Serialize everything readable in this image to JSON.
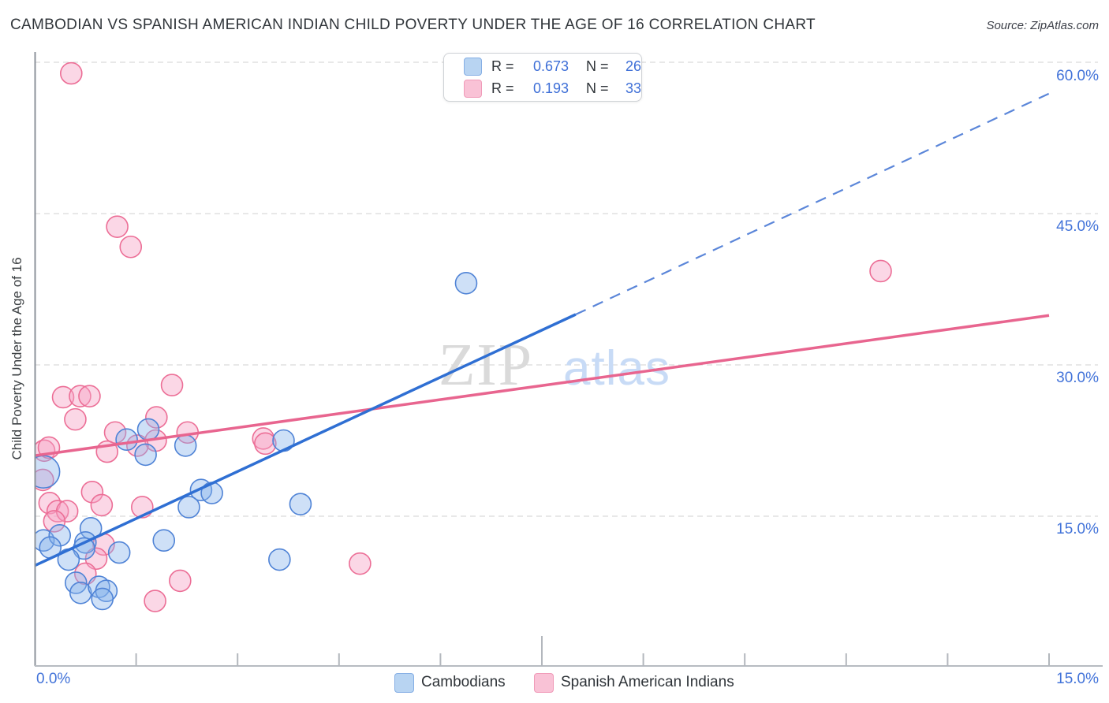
{
  "header": {
    "title": "CAMBODIAN VS SPANISH AMERICAN INDIAN CHILD POVERTY UNDER THE AGE OF 16 CORRELATION CHART",
    "source": "Source: ZipAtlas.com"
  },
  "watermark": {
    "part1": "ZIP",
    "part2": "atlas"
  },
  "legend_box": {
    "rows": [
      {
        "series": "Cambodians",
        "r_label": "R =",
        "r_value": "0.673",
        "n_label": "N =",
        "n_value": "26"
      },
      {
        "series": "Spanish American Indians",
        "r_label": "R =",
        "r_value": "0.193",
        "n_label": "N =",
        "n_value": "33"
      }
    ]
  },
  "bottom_legend": {
    "items": [
      {
        "label": "Cambodians"
      },
      {
        "label": "Spanish American Indians"
      }
    ]
  },
  "chart_data": {
    "type": "scatter",
    "title": "Cambodian vs Spanish American Indian Child Poverty Under the Age of 16",
    "xlabel": "",
    "ylabel": "Child Poverty Under the Age of 16",
    "xlim": [
      0,
      15
    ],
    "ylim": [
      0,
      62
    ],
    "grid": "horizontal-dashed",
    "legend_position": "top-center and bottom-center",
    "x_tick_labels": {
      "left": "0.0%",
      "right": "15.0%"
    },
    "y_ticks": [
      {
        "value": 60,
        "label": "60.0%"
      },
      {
        "value": 45,
        "label": "45.0%"
      },
      {
        "value": 30,
        "label": "30.0%"
      },
      {
        "value": 15,
        "label": "15.0%"
      }
    ],
    "series": [
      {
        "name": "Cambodians",
        "R": 0.673,
        "N": 26,
        "point_fill": "rgba(133,177,236,0.40)",
        "point_stroke": "#4f83d6",
        "trend_color": "#2f6fd3",
        "trend_dashed_color": "#5b86d9",
        "trend": {
          "solid": {
            "x1": 0,
            "y1": 10.1,
            "x2": 8.0,
            "y2": 35.0
          },
          "dashed": {
            "x1": 8.0,
            "y1": 35.0,
            "x2": 15.0,
            "y2": 56.9
          }
        },
        "points": [
          [
            0.13,
            19.4,
            20.5
          ],
          [
            1.36,
            22.6
          ],
          [
            1.68,
            23.6
          ],
          [
            2.23,
            22.0
          ],
          [
            1.64,
            21.1
          ],
          [
            2.46,
            17.6
          ],
          [
            2.62,
            17.3
          ],
          [
            2.28,
            15.9
          ],
          [
            0.83,
            13.8
          ],
          [
            0.13,
            12.6
          ],
          [
            0.37,
            13.1
          ],
          [
            0.23,
            11.9
          ],
          [
            0.75,
            12.4
          ],
          [
            0.73,
            11.8
          ],
          [
            1.25,
            11.4
          ],
          [
            0.5,
            10.7
          ],
          [
            0.61,
            8.4
          ],
          [
            0.68,
            7.4
          ],
          [
            0.95,
            8.0
          ],
          [
            1.06,
            7.6
          ],
          [
            1.0,
            6.8
          ],
          [
            1.91,
            12.6
          ],
          [
            3.62,
            10.7
          ],
          [
            3.68,
            22.5
          ],
          [
            3.93,
            16.2
          ],
          [
            6.38,
            38.1
          ]
        ]
      },
      {
        "name": "Spanish American Indians",
        "R": 0.193,
        "N": 33,
        "point_fill": "rgba(246,160,195,0.42)",
        "point_stroke": "#ec6e96",
        "trend_color": "#e8658f",
        "trend": {
          "solid": {
            "x1": 0,
            "y1": 21.0,
            "x2": 15.0,
            "y2": 34.9
          }
        },
        "points": [
          [
            0.54,
            58.9
          ],
          [
            1.22,
            43.7
          ],
          [
            1.42,
            41.7
          ],
          [
            12.51,
            39.3
          ],
          [
            0.42,
            26.8
          ],
          [
            0.67,
            26.9
          ],
          [
            0.81,
            26.9
          ],
          [
            0.6,
            24.6
          ],
          [
            2.03,
            28.0
          ],
          [
            1.19,
            23.3
          ],
          [
            1.8,
            24.8
          ],
          [
            2.26,
            23.3
          ],
          [
            1.79,
            22.5
          ],
          [
            1.07,
            21.4
          ],
          [
            1.52,
            22.0
          ],
          [
            0.14,
            21.5
          ],
          [
            0.21,
            21.8
          ],
          [
            0.12,
            18.6
          ],
          [
            0.85,
            17.4
          ],
          [
            0.99,
            16.1
          ],
          [
            0.22,
            16.3
          ],
          [
            0.34,
            15.5
          ],
          [
            0.48,
            15.5
          ],
          [
            0.29,
            14.5
          ],
          [
            1.59,
            15.9
          ],
          [
            1.02,
            12.2
          ],
          [
            0.91,
            10.8
          ],
          [
            0.75,
            9.3
          ],
          [
            1.78,
            6.6
          ],
          [
            2.15,
            8.6
          ],
          [
            4.81,
            10.3
          ],
          [
            3.38,
            22.7
          ],
          [
            3.41,
            22.2
          ]
        ]
      }
    ]
  }
}
